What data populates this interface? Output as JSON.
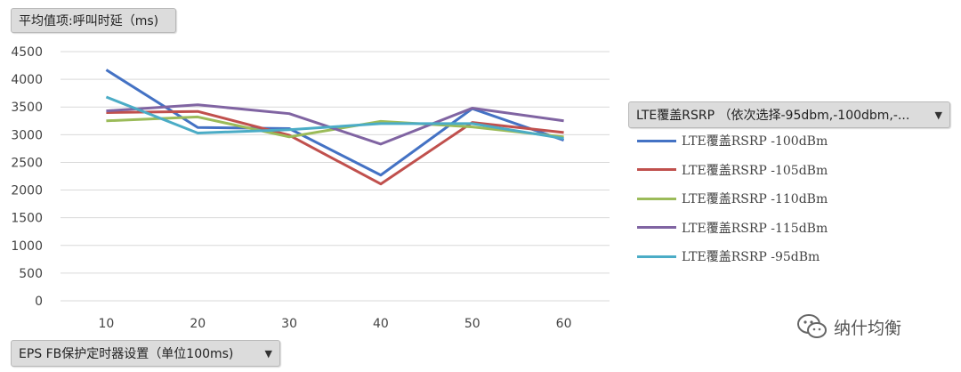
{
  "value_field": {
    "label": "平均值项:呼叫时延（ms)"
  },
  "x_field": {
    "label": "EPS FB保护定时器设置（单位100ms)",
    "arrow": "▼"
  },
  "legend_field": {
    "label": "LTE覆盖RSRP （依次选择-95dbm,-100dbm,-...",
    "arrow": "▼"
  },
  "watermark": {
    "text": "纳什均衡",
    "icon": "wechat-icon"
  },
  "chart_data": {
    "type": "line",
    "categories": [
      "10",
      "20",
      "30",
      "40",
      "50",
      "60"
    ],
    "ylim": [
      0,
      4500
    ],
    "yticks": [
      "0",
      "500",
      "1000",
      "1500",
      "2000",
      "2500",
      "3000",
      "3500",
      "4000",
      "4500"
    ],
    "grid": true,
    "legend_position": "right",
    "series": [
      {
        "name": "LTE覆盖RSRP -100dBm",
        "color": "#4472C4",
        "values": [
          4170,
          3130,
          3110,
          2270,
          3470,
          2900
        ]
      },
      {
        "name": "LTE覆盖RSRP -105dBm",
        "color": "#C0504D",
        "values": [
          3400,
          3420,
          2990,
          2110,
          3220,
          3040
        ]
      },
      {
        "name": "LTE覆盖RSRP -110dBm",
        "color": "#9BBB59",
        "values": [
          3250,
          3320,
          2960,
          3240,
          3140,
          2960
        ]
      },
      {
        "name": "LTE覆盖RSRP -115dBm",
        "color": "#8064A2",
        "values": [
          3430,
          3540,
          3380,
          2830,
          3480,
          3250
        ]
      },
      {
        "name": "LTE覆盖RSRP -95dBm",
        "color": "#4BACC6",
        "values": [
          3680,
          3030,
          3090,
          3200,
          3200,
          2930
        ]
      }
    ]
  }
}
